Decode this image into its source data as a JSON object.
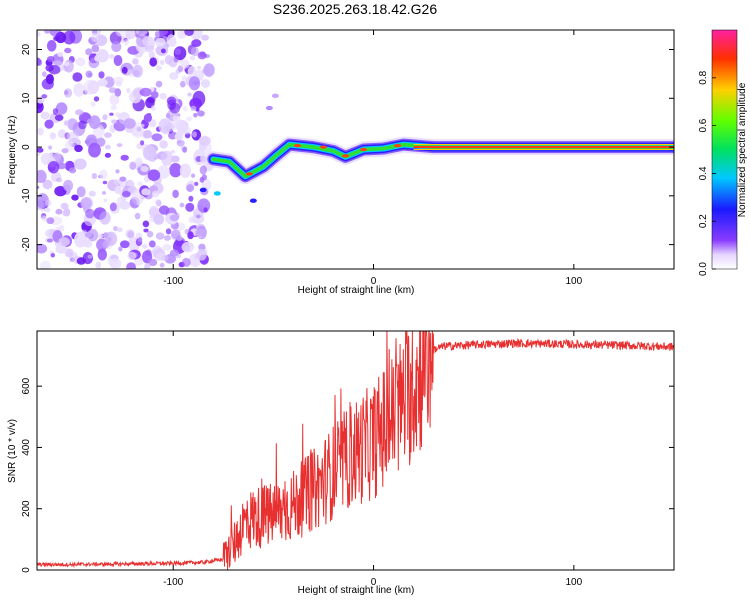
{
  "chart_data": [
    {
      "type": "heatmap",
      "title": "S236.2025.263.18.42.G26",
      "xlabel": "Height of straight line (km)",
      "ylabel": "Frequency (Hz)",
      "xlim": [
        -168,
        150
      ],
      "ylim": [
        -25,
        24
      ],
      "xticks": [
        -100,
        0,
        100
      ],
      "xtick_labels": [
        "-100",
        "0",
        "100"
      ],
      "yticks": [
        -20,
        -10,
        0,
        10,
        20
      ],
      "ytick_labels": [
        "-20",
        "-10",
        "0",
        "10",
        "20"
      ],
      "colorbar": {
        "label": "Normalized spectral amplitude",
        "ticks": [
          0.0,
          0.2,
          0.4,
          0.6,
          0.8
        ],
        "tick_labels": [
          "0.0",
          "0.2",
          "0.4",
          "0.6",
          "0.8"
        ],
        "range": [
          0,
          1
        ],
        "colormap": "rainbow (violet low to magenta high)"
      },
      "features": {
        "noise_region_x": [
          -168,
          -82
        ],
        "signal_track": [
          {
            "x": -80,
            "f": -2.5
          },
          {
            "x": -72,
            "f": -3.0
          },
          {
            "x": -64,
            "f": -6.0
          },
          {
            "x": -55,
            "f": -4.0
          },
          {
            "x": -48,
            "f": -1.5
          },
          {
            "x": -42,
            "f": 0.5
          },
          {
            "x": -30,
            "f": 0.0
          },
          {
            "x": -20,
            "f": -0.8
          },
          {
            "x": -14,
            "f": -2.0
          },
          {
            "x": -5,
            "f": -0.5
          },
          {
            "x": 5,
            "f": -0.3
          },
          {
            "x": 15,
            "f": 0.5
          },
          {
            "x": 30,
            "f": 0.0
          },
          {
            "x": 150,
            "f": 0.0
          }
        ]
      }
    },
    {
      "type": "line",
      "xlabel": "Height of straight line (km)",
      "ylabel": "SNR (10 * v/v)",
      "xlim": [
        -168,
        150
      ],
      "ylim": [
        0,
        780
      ],
      "xticks": [
        -100,
        0,
        100
      ],
      "xtick_labels": [
        "-100",
        "0",
        "100"
      ],
      "yticks": [
        0,
        200,
        400,
        600
      ],
      "ytick_labels": [
        "0",
        "200",
        "400",
        "600"
      ],
      "series": [
        {
          "name": "SNR",
          "color": "#e83030",
          "x": [
            -168,
            -150,
            -120,
            -100,
            -85,
            -75,
            -70,
            -65,
            -60,
            -50,
            -40,
            -30,
            -20,
            -10,
            0,
            10,
            20,
            25,
            30,
            35,
            50,
            70,
            90,
            110,
            130,
            150
          ],
          "y": [
            18,
            18,
            20,
            22,
            25,
            35,
            80,
            150,
            170,
            180,
            210,
            260,
            320,
            380,
            420,
            500,
            600,
            670,
            720,
            730,
            735,
            740,
            738,
            735,
            732,
            728
          ]
        }
      ]
    }
  ]
}
